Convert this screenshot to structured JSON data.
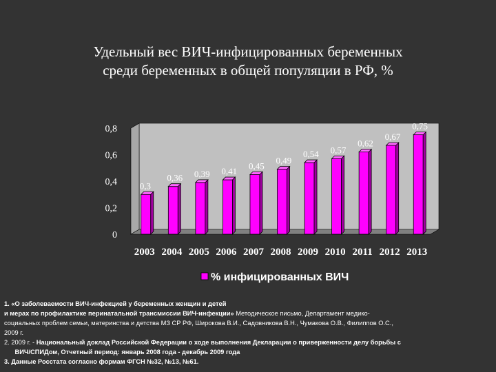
{
  "title": {
    "line1": "Удельный вес ВИЧ-инфицированных беременных",
    "line2": "среди беременных в общей популяции в РФ, %"
  },
  "chart_data": {
    "type": "bar",
    "categories": [
      "2003",
      "2004",
      "2005",
      "2006",
      "2007",
      "2008",
      "2009",
      "2010",
      "2011",
      "2012",
      "2013"
    ],
    "series": [
      {
        "name": "% инфицированных ВИЧ",
        "values": [
          0.3,
          0.36,
          0.39,
          0.41,
          0.45,
          0.49,
          0.54,
          0.57,
          0.62,
          0.67,
          0.75
        ],
        "data_labels": [
          "0,3",
          "0,36",
          "0,39",
          "0,41",
          "0,45",
          "0,49",
          "0,54",
          "0,57",
          "0,62",
          "0,67",
          "0,75"
        ]
      }
    ],
    "ylim": [
      0,
      0.8
    ],
    "yticks": [
      0,
      0.2,
      0.4,
      0.6,
      0.8
    ],
    "ytick_labels": [
      "0",
      "0,2",
      "0,4",
      "0,6",
      "0,8"
    ],
    "legend": "bottom",
    "grid": false,
    "bar_color": "#ff00ff",
    "plot_bg": "#c0c0c0",
    "floor_color": "#808080"
  },
  "sources": [
    {
      "bold": "1. «О заболеваемости ВИЧ-инфекцией у беременных женщин и детей"
    },
    {
      "bold": "и мерах по профилактике перинатальной трансмиссии ВИЧ-инфекции»",
      "normal": " Методическое письмо, Департамент медико-"
    },
    {
      "normal": "социальных проблем семьи, материнства и детства МЗ СР РФ, Широкова В.И., Садовникова В.Н., Чумакова О.В., Филиппов О.С.,"
    },
    {
      "normal": "2009 г."
    },
    {
      "normal": "2.   2009 г. - ",
      "bold": "Национальный доклад Российской Федерации о ходе выполнения Декларации о приверженности делу борьбы с"
    },
    {
      "bold": "      ВИЧ/СПИДом, Отчетный период: январь 2008 года - декабрь 2009 года"
    },
    {
      "bold": "3.  Данные Росстата согласно формам ФГСН №32, №13, №61."
    }
  ]
}
